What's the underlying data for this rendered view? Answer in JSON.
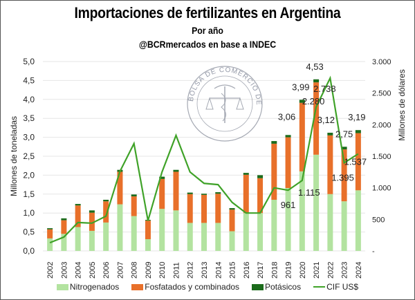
{
  "header": {
    "title": "Importaciones de fertilizantes en Argentina",
    "subtitle": "Por año",
    "source": "@BCRmercados en base a INDEC"
  },
  "watermark": {
    "text": "BOLSA DE COMERCIO DE ROSARIO",
    "icon": "bcr-seal-logo"
  },
  "colors": {
    "nitrogenados": "#b3e3a0",
    "fosfatados": "#e8702a",
    "potasicos": "#1b6b1b",
    "cif": "#3fa228",
    "grid": "#e6e6e6"
  },
  "chart_data": {
    "type": "bar",
    "stacked": true,
    "title": "Importaciones de fertilizantes en Argentina",
    "subtitle": "Por año",
    "ylabel": "Millones de toneladas",
    "y2label": "Millones de dólares",
    "ylim": [
      0,
      5
    ],
    "y2lim": [
      0,
      3000
    ],
    "yticks": [
      "0,0",
      "0,5",
      "1,0",
      "1,5",
      "2,0",
      "2,5",
      "3,0",
      "3,5",
      "4,0",
      "4,5",
      "5,0"
    ],
    "y2ticks": [
      "-",
      "500",
      "1.000",
      "1.500",
      "2.000",
      "2.500",
      "3.000"
    ],
    "grid": true,
    "legend_position": "bottom",
    "categories": [
      "2002",
      "2003",
      "2004",
      "2005",
      "2006",
      "2007",
      "2008",
      "2009",
      "2010",
      "2011",
      "2012",
      "2013",
      "2014",
      "2015",
      "2016",
      "2017",
      "2018",
      "2019",
      "2020",
      "2021",
      "2022",
      "2023",
      "2024"
    ],
    "series": [
      {
        "name": "Nitrogenados",
        "axis": "left",
        "kind": "bar",
        "values": [
          0.33,
          0.45,
          0.63,
          0.53,
          0.75,
          1.23,
          0.92,
          0.31,
          1.11,
          1.07,
          0.74,
          0.74,
          0.74,
          0.52,
          1.0,
          1.0,
          1.35,
          1.66,
          2.1,
          2.54,
          1.5,
          1.31,
          1.6
        ]
      },
      {
        "name": "Fosfatados y combinados",
        "axis": "left",
        "kind": "bar",
        "values": [
          0.24,
          0.36,
          0.57,
          0.48,
          0.56,
          0.86,
          0.52,
          0.49,
          0.79,
          1.02,
          0.76,
          0.74,
          0.77,
          0.57,
          1.01,
          0.92,
          1.48,
          1.34,
          1.81,
          1.91,
          1.55,
          1.37,
          1.51
        ]
      },
      {
        "name": "Potásicos",
        "axis": "left",
        "kind": "bar",
        "values": [
          0.03,
          0.05,
          0.04,
          0.06,
          0.04,
          0.05,
          0.05,
          0.02,
          0.06,
          0.05,
          0.04,
          0.03,
          0.04,
          0.04,
          0.05,
          0.08,
          0.07,
          0.06,
          0.08,
          0.08,
          0.07,
          0.07,
          0.08
        ]
      },
      {
        "name": "CIF US$",
        "axis": "right",
        "kind": "line",
        "values": [
          130,
          220,
          450,
          440,
          550,
          1260,
          1700,
          480,
          1250,
          1830,
          1250,
          1070,
          1050,
          770,
          600,
          600,
          1000,
          961,
          1115,
          2280,
          2738,
          1395,
          1537
        ]
      }
    ],
    "total_labels": [
      {
        "category": "2019",
        "text": "3,06"
      },
      {
        "category": "2020",
        "text": "3,99"
      },
      {
        "category": "2021",
        "text": "4,53"
      },
      {
        "category": "2022",
        "text": "3,12"
      },
      {
        "category": "2023",
        "text": "2,75"
      },
      {
        "category": "2024",
        "text": "3,19"
      }
    ],
    "cif_labels": [
      {
        "category": "2019",
        "text": "961"
      },
      {
        "category": "2020",
        "text": "1.115"
      },
      {
        "category": "2021",
        "text": "2.280"
      },
      {
        "category": "2022",
        "text": "2.738"
      },
      {
        "category": "2023",
        "text": "1.395"
      },
      {
        "category": "2024",
        "text": "1.537"
      }
    ]
  }
}
